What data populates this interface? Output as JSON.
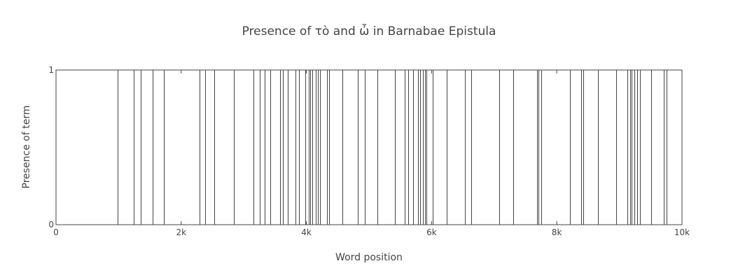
{
  "chart_data": {
    "type": "bar",
    "title": "Presence of τὸ and ὦ in Barnabae Epistula",
    "xlabel": "Word position",
    "ylabel": "Presence of term",
    "xlim": [
      0,
      10000
    ],
    "ylim": [
      0,
      1
    ],
    "x_ticks": [
      "0",
      "2k",
      "4k",
      "6k",
      "8k",
      "10k"
    ],
    "y_ticks": [
      "0",
      "1"
    ],
    "grid": false,
    "legend": "none",
    "line_color": "#444444",
    "positions": [
      980,
      1240,
      1350,
      1540,
      1720,
      2290,
      2380,
      2530,
      2840,
      3150,
      3260,
      3330,
      3420,
      3580,
      3620,
      3700,
      3830,
      3880,
      3980,
      4040,
      4060,
      4090,
      4150,
      4180,
      4220,
      4330,
      4360,
      4570,
      4820,
      4930,
      5130,
      5410,
      5570,
      5630,
      5700,
      5780,
      5820,
      5860,
      5890,
      5920,
      6020,
      6240,
      6530,
      6630,
      7080,
      7300,
      7680,
      7710,
      7750,
      8210,
      8390,
      8420,
      8660,
      8950,
      9130,
      9170,
      9200,
      9240,
      9280,
      9330,
      9510,
      9710,
      9750
    ],
    "values": 1
  }
}
